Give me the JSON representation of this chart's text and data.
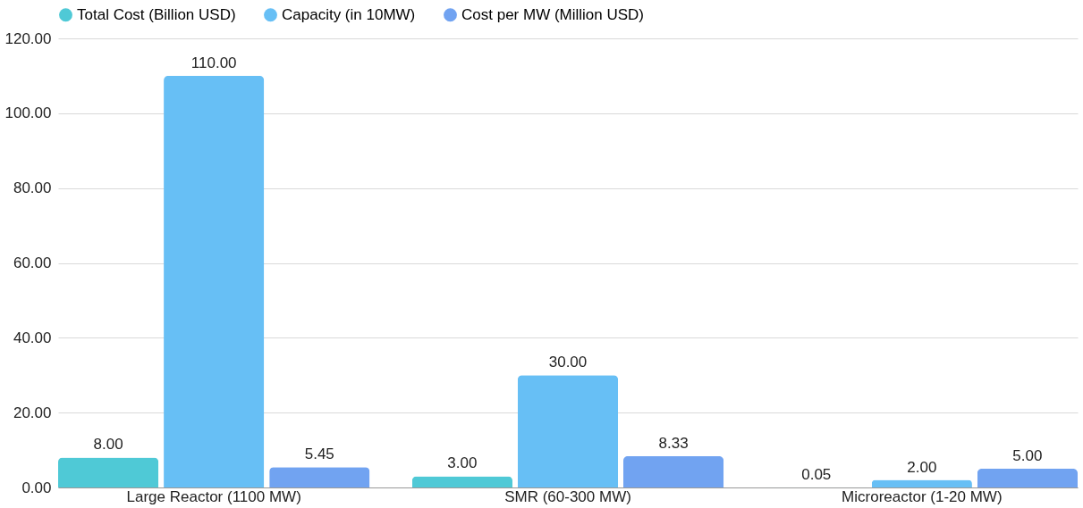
{
  "chart_data": {
    "type": "bar",
    "categories": [
      "Large Reactor (1100 MW)",
      "SMR (60-300 MW)",
      "Microreactor (1-20 MW)"
    ],
    "series": [
      {
        "name": "Total Cost (Billion USD)",
        "color": "#4fc9d6",
        "values": [
          8.0,
          3.0,
          0.05
        ],
        "value_labels": [
          "8.00",
          "3.00",
          "0.05"
        ]
      },
      {
        "name": "Capacity (in 10MW)",
        "color": "#67bff5",
        "values": [
          110.0,
          30.0,
          2.0
        ],
        "value_labels": [
          "110.00",
          "30.00",
          "2.00"
        ]
      },
      {
        "name": "Cost per MW (Million USD)",
        "color": "#71a3f1",
        "values": [
          5.45,
          8.33,
          5.0
        ],
        "value_labels": [
          "5.45",
          "8.33",
          "5.00"
        ]
      }
    ],
    "ylim": [
      0,
      120
    ],
    "yticks": [
      {
        "value": 0,
        "label": "0.00"
      },
      {
        "value": 20,
        "label": "20.00"
      },
      {
        "value": 40,
        "label": "40.00"
      },
      {
        "value": 60,
        "label": "60.00"
      },
      {
        "value": 80,
        "label": "80.00"
      },
      {
        "value": 100,
        "label": "100.00"
      },
      {
        "value": 120,
        "label": "120.00"
      }
    ],
    "grid": "y",
    "legend": "top"
  }
}
